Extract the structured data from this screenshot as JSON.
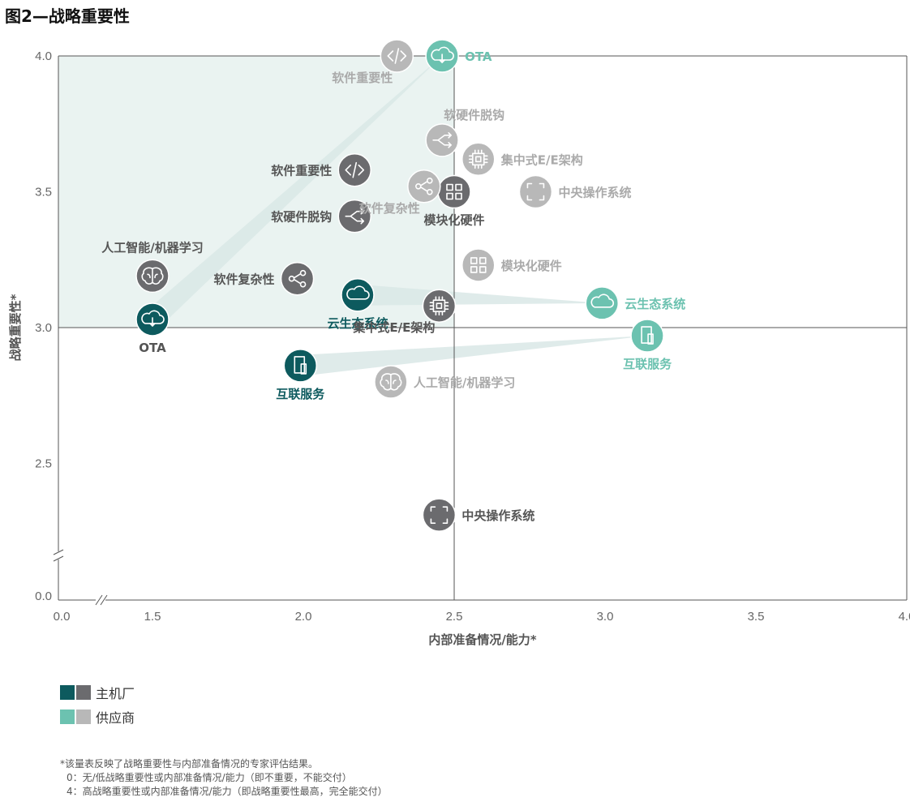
{
  "figure_title": "图2—战略重要性",
  "colors": {
    "oem_primary": "#0d5a5e",
    "oem_secondary": "#6b6b6e",
    "supplier_primary": "#6cc2b0",
    "supplier_secondary": "#b8b8b8",
    "quadrant_fill": "#eaf3f1",
    "band": "#d9e8e6"
  },
  "legend": [
    {
      "label": "主机厂",
      "colors": [
        "#0d5a5e",
        "#6b6b6e"
      ]
    },
    {
      "label": "供应商",
      "colors": [
        "#6cc2b0",
        "#b8b8b8"
      ]
    }
  ],
  "notes": [
    "*该量表反映了战略重要性与内部准备情况的专家评估结果。",
    "0：无/低战略重要性或内部准备情况/能力（即不重要，不能交付）",
    "4：高战略重要性或内部准备情况/能力（即战略重要性最高，完全能交付）"
  ],
  "chart_data": {
    "type": "scatter",
    "xlabel": "内部准备情况/能力*",
    "ylabel": "战略重要性*",
    "xlim": [
      0,
      4
    ],
    "ylim": [
      0,
      4
    ],
    "axis_break": true,
    "x_ticks": [
      "0.0",
      "1.5",
      "2.0",
      "2.5",
      "3.0",
      "3.5",
      "4.0"
    ],
    "y_ticks": [
      "4.0",
      "3.5",
      "3.0",
      "2.5",
      "0.0"
    ],
    "divider": {
      "x": 2.5,
      "y": 3.0
    },
    "highlight_quadrant": "top-left",
    "series": [
      {
        "name": "主机厂",
        "points": [
          {
            "label": "OTA",
            "x": 1.5,
            "y": 3.03,
            "icon": "cloud-download-icon",
            "tone": "primary",
            "label_pos": "below"
          },
          {
            "label": "互联服务",
            "x": 1.99,
            "y": 2.86,
            "icon": "tablet-icon",
            "tone": "primary",
            "label_pos": "below"
          },
          {
            "label": "云生态系统",
            "x": 2.18,
            "y": 3.12,
            "icon": "cloud-icon",
            "tone": "primary",
            "label_pos": "below"
          },
          {
            "label": "软件重要性",
            "x": 2.17,
            "y": 3.58,
            "icon": "code-icon",
            "tone": "secondary",
            "label_pos": "left"
          },
          {
            "label": "软硬件脱钩",
            "x": 2.17,
            "y": 3.41,
            "icon": "decouple-icon",
            "tone": "secondary",
            "label_pos": "left"
          },
          {
            "label": "人工智能/机器学习",
            "x": 1.5,
            "y": 3.19,
            "icon": "brain-icon",
            "tone": "secondary",
            "label_pos": "above"
          },
          {
            "label": "软件复杂性",
            "x": 1.98,
            "y": 3.18,
            "icon": "share-icon",
            "tone": "secondary",
            "label_pos": "left"
          },
          {
            "label": "模块化硬件",
            "x": 2.5,
            "y": 3.5,
            "icon": "grid-icon",
            "tone": "secondary",
            "label_pos": "below"
          },
          {
            "label": "集中式E/E架构",
            "x": 2.45,
            "y": 3.08,
            "icon": "chip-icon",
            "tone": "secondary",
            "label_pos": "below-left"
          },
          {
            "label": "中央操作系统",
            "x": 2.45,
            "y": 2.31,
            "icon": "frame-icon",
            "tone": "secondary",
            "label_pos": "right"
          }
        ]
      },
      {
        "name": "供应商",
        "points": [
          {
            "label": "OTA",
            "x": 2.46,
            "y": 4.0,
            "icon": "cloud-download-icon",
            "tone": "primary",
            "label_pos": "right"
          },
          {
            "label": "云生态系统",
            "x": 2.99,
            "y": 3.09,
            "icon": "cloud-icon",
            "tone": "primary",
            "label_pos": "right"
          },
          {
            "label": "互联服务",
            "x": 3.14,
            "y": 2.97,
            "icon": "tablet-icon",
            "tone": "primary",
            "label_pos": "below"
          },
          {
            "label": "软件重要性",
            "x": 2.31,
            "y": 4.0,
            "icon": "code-icon",
            "tone": "secondary",
            "label_pos": "below-left"
          },
          {
            "label": "软硬件脱钩",
            "x": 2.46,
            "y": 3.69,
            "icon": "decouple-icon",
            "tone": "secondary",
            "label_pos": "above-right"
          },
          {
            "label": "集中式E/E架构",
            "x": 2.58,
            "y": 3.62,
            "icon": "chip-icon",
            "tone": "secondary",
            "label_pos": "right"
          },
          {
            "label": "中央操作系统",
            "x": 2.77,
            "y": 3.5,
            "icon": "frame-icon",
            "tone": "secondary",
            "label_pos": "right"
          },
          {
            "label": "软件复杂性",
            "x": 2.4,
            "y": 3.52,
            "icon": "share-icon",
            "tone": "secondary",
            "label_pos": "below-left"
          },
          {
            "label": "模块化硬件",
            "x": 2.58,
            "y": 3.23,
            "icon": "grid-icon",
            "tone": "secondary",
            "label_pos": "right"
          },
          {
            "label": "人工智能/机器学习",
            "x": 2.29,
            "y": 2.8,
            "icon": "brain-icon",
            "tone": "secondary",
            "label_pos": "right"
          }
        ]
      }
    ],
    "links": [
      {
        "label": "OTA",
        "from": [
          1.5,
          3.03
        ],
        "to": [
          2.46,
          4.0
        ]
      },
      {
        "label": "云生态系统",
        "from": [
          2.18,
          3.12
        ],
        "to": [
          2.99,
          3.09
        ]
      },
      {
        "label": "互联服务",
        "from": [
          1.99,
          2.86
        ],
        "to": [
          3.14,
          2.97
        ]
      }
    ]
  }
}
